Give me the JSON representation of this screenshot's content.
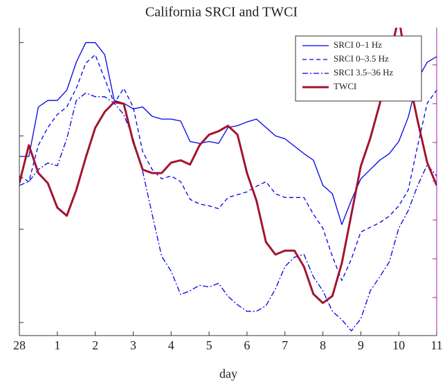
{
  "chart_data": {
    "type": "line",
    "title": "California SRCI and TWCI",
    "x_label": "day",
    "x": [
      0,
      0.25,
      0.5,
      0.75,
      1,
      1.25,
      1.5,
      1.75,
      2,
      2.25,
      2.5,
      2.75,
      3,
      3.25,
      3.5,
      3.75,
      4,
      4.25,
      4.5,
      4.75,
      5,
      5.25,
      5.5,
      5.75,
      6,
      6.25,
      6.5,
      6.75,
      7,
      7.25,
      7.5,
      7.75,
      8,
      8.25,
      8.5,
      8.75,
      9,
      9.25,
      9.5,
      9.75,
      10,
      10.25,
      10.5,
      10.75,
      11
    ],
    "xlim": [
      0,
      11
    ],
    "xticks": [
      {
        "value": 0,
        "label": "28"
      },
      1,
      2,
      3,
      4,
      5,
      6,
      7,
      8,
      9,
      10,
      11
    ],
    "ylim": [
      -0.14,
      3.16
    ],
    "yticks": [
      0,
      1,
      2,
      3
    ],
    "y2lim": [
      -0.98,
      6.96
    ],
    "y2ticks": [
      0,
      1,
      2,
      3,
      4,
      5,
      6
    ],
    "y2color": "#a020a0",
    "legend": "upper right",
    "series": [
      {
        "name": "SRCI 0–1 Hz",
        "color": "#0000e6",
        "linestyle": "solid",
        "width": 1.3,
        "values": [
          1.78,
          1.78,
          2.31,
          2.38,
          2.38,
          2.49,
          2.79,
          3.0,
          3.0,
          2.87,
          2.38,
          2.35,
          2.29,
          2.31,
          2.21,
          2.18,
          2.18,
          2.16,
          1.94,
          1.92,
          1.94,
          1.92,
          2.09,
          2.11,
          2.15,
          2.18,
          2.09,
          2.0,
          1.97,
          1.89,
          1.81,
          1.74,
          1.47,
          1.38,
          1.05,
          1.31,
          1.54,
          1.64,
          1.74,
          1.81,
          1.94,
          2.2,
          2.61,
          2.79,
          2.85
        ]
      },
      {
        "name": "SRCI 0–3.5 Hz",
        "color": "#0000e6",
        "linestyle": "dashed",
        "width": 1.3,
        "values": [
          1.57,
          1.51,
          1.9,
          2.09,
          2.23,
          2.31,
          2.51,
          2.78,
          2.87,
          2.61,
          2.35,
          2.51,
          2.31,
          1.83,
          1.64,
          1.54,
          1.57,
          1.51,
          1.32,
          1.27,
          1.25,
          1.22,
          1.34,
          1.37,
          1.4,
          1.46,
          1.51,
          1.38,
          1.34,
          1.34,
          1.34,
          1.16,
          1.01,
          0.71,
          0.45,
          0.68,
          0.97,
          1.02,
          1.07,
          1.14,
          1.25,
          1.42,
          1.9,
          2.35,
          2.49
        ]
      },
      {
        "name": "SRCI 3.5–36 Hz",
        "color": "#0000e6",
        "linestyle": "dashdot",
        "width": 1.3,
        "values": [
          1.47,
          1.51,
          1.64,
          1.71,
          1.68,
          1.97,
          2.38,
          2.46,
          2.42,
          2.42,
          2.35,
          2.23,
          1.97,
          1.62,
          1.16,
          0.71,
          0.55,
          0.3,
          0.34,
          0.4,
          0.38,
          0.42,
          0.28,
          0.19,
          0.12,
          0.12,
          0.18,
          0.36,
          0.6,
          0.7,
          0.73,
          0.49,
          0.34,
          0.12,
          0.03,
          -0.09,
          0.04,
          0.34,
          0.49,
          0.65,
          1.01,
          1.2,
          1.47,
          1.69,
          1.57
        ]
      },
      {
        "name": "TWCI",
        "color": "#a2142f",
        "linestyle": "solid",
        "width": 3,
        "axis": "y2",
        "values": [
          2.95,
          3.93,
          3.21,
          2.95,
          2.32,
          2.11,
          2.77,
          3.61,
          4.38,
          4.79,
          5.04,
          5.0,
          4.02,
          3.3,
          3.21,
          3.21,
          3.48,
          3.54,
          3.43,
          3.93,
          4.2,
          4.29,
          4.43,
          4.2,
          3.21,
          2.5,
          1.43,
          1.11,
          1.21,
          1.21,
          0.8,
          0.09,
          -0.14,
          0.04,
          0.89,
          2.14,
          3.39,
          4.11,
          5.0,
          6.16,
          7.23,
          5.71,
          4.55,
          3.48,
          2.89
        ]
      }
    ]
  }
}
